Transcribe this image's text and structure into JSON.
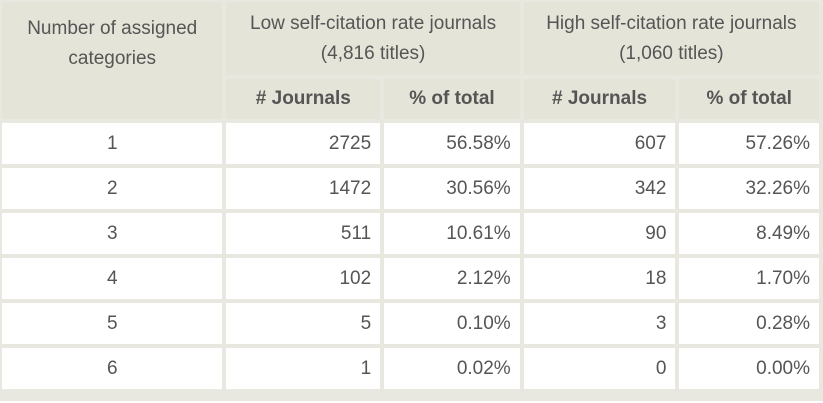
{
  "table": {
    "header": {
      "category_label": "Number of assigned categories",
      "group_low": "Low self-citation rate journals (4,816 titles)",
      "group_high": "High self-citation rate journals (1,060 titles)",
      "sub_low_journals": "# Journals",
      "sub_low_pct": "% of total",
      "sub_high_journals": "# Journals",
      "sub_high_pct": "% of total"
    },
    "rows": [
      {
        "category": "1",
        "low_journals": "2725",
        "low_pct": "56.58%",
        "high_journals": "607",
        "high_pct": "57.26%"
      },
      {
        "category": "2",
        "low_journals": "1472",
        "low_pct": "30.56%",
        "high_journals": "342",
        "high_pct": "32.26%"
      },
      {
        "category": "3",
        "low_journals": "511",
        "low_pct": "10.61%",
        "high_journals": "90",
        "high_pct": "8.49%"
      },
      {
        "category": "4",
        "low_journals": "102",
        "low_pct": "2.12%",
        "high_journals": "18",
        "high_pct": "1.70%"
      },
      {
        "category": "5",
        "low_journals": "5",
        "low_pct": "0.10%",
        "high_journals": "3",
        "high_pct": "0.28%"
      },
      {
        "category": "6",
        "low_journals": "1",
        "low_pct": "0.02%",
        "high_journals": "0",
        "high_pct": "0.00%"
      }
    ]
  }
}
